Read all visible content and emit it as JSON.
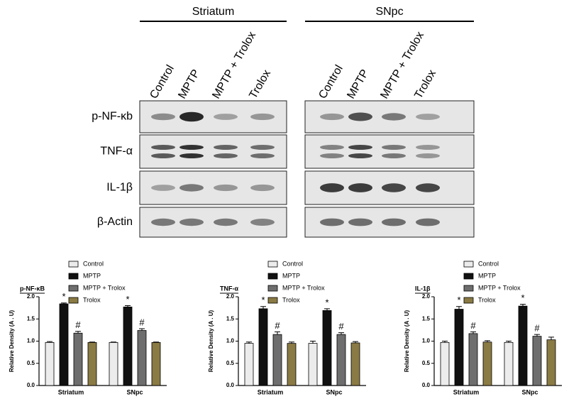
{
  "blot": {
    "regions": [
      "Striatum",
      "SNpc"
    ],
    "lanes": [
      "Control",
      "MPTP",
      "MPTP + Trolox",
      "Trolox"
    ],
    "rows": [
      "p-NF-κb",
      "TNF-α",
      "IL-1β",
      "β-Actin"
    ]
  },
  "chart_data": [
    {
      "type": "bar",
      "title": "p-NF-κB",
      "y_label": "Relative Density (A . U)",
      "categories": [
        "Striatum",
        "SNpc"
      ],
      "ylim": [
        0,
        2
      ],
      "yticks": [
        {
          "value": 0,
          "label": "0.0"
        },
        0.5,
        {
          "value": 1,
          "label": "1.0"
        },
        1.5,
        {
          "value": 2,
          "label": "2.0"
        }
      ],
      "series": [
        {
          "name": "Control",
          "color": "#ececec",
          "values": [
            0.97,
            0.97
          ],
          "errors": [
            0.02,
            0.01
          ]
        },
        {
          "name": "MPTP",
          "color": "#111111",
          "values": [
            1.84,
            1.77
          ],
          "errors": [
            0.02,
            0.03
          ],
          "annotations": [
            "*",
            "*"
          ]
        },
        {
          "name": "MPTP + Trolox",
          "color": "#6e6e6e",
          "values": [
            1.18,
            1.24
          ],
          "errors": [
            0.04,
            0.04
          ],
          "annotations": [
            "#",
            "#"
          ]
        },
        {
          "name": "Trolox",
          "color": "#8a7a44",
          "values": [
            0.97,
            0.97
          ],
          "errors": [
            0.01,
            0.01
          ]
        }
      ]
    },
    {
      "type": "bar",
      "title": "TNF-α",
      "y_label": "Relative Density (A . U)",
      "categories": [
        "Striatum",
        "SNpc"
      ],
      "ylim": [
        0,
        2
      ],
      "yticks": [
        {
          "value": 0,
          "label": "0.0"
        },
        0.5,
        {
          "value": 1,
          "label": "1.0"
        },
        1.5,
        {
          "value": 2,
          "label": "2.0"
        }
      ],
      "series": [
        {
          "name": "Control",
          "color": "#ececec",
          "values": [
            0.95,
            0.95
          ],
          "errors": [
            0.03,
            0.05
          ]
        },
        {
          "name": "MPTP",
          "color": "#111111",
          "values": [
            1.73,
            1.69
          ],
          "errors": [
            0.05,
            0.04
          ],
          "annotations": [
            "*",
            "*"
          ]
        },
        {
          "name": "MPTP + Trolox",
          "color": "#6e6e6e",
          "values": [
            1.15,
            1.15
          ],
          "errors": [
            0.06,
            0.04
          ],
          "annotations": [
            "#",
            "#"
          ]
        },
        {
          "name": "Trolox",
          "color": "#8a7a44",
          "values": [
            0.95,
            0.96
          ],
          "errors": [
            0.03,
            0.03
          ]
        }
      ]
    },
    {
      "type": "bar",
      "title": "IL-1β",
      "y_label": "Relative Density (A . U)",
      "categories": [
        "Striatum",
        "SNpc"
      ],
      "ylim": [
        0,
        2
      ],
      "yticks": [
        {
          "value": 0,
          "label": "0.0"
        },
        0.5,
        {
          "value": 1,
          "label": "1.0"
        },
        1.5,
        {
          "value": 2,
          "label": "2.0"
        }
      ],
      "series": [
        {
          "name": "Control",
          "color": "#ececec",
          "values": [
            0.97,
            0.97
          ],
          "errors": [
            0.03,
            0.03
          ]
        },
        {
          "name": "MPTP",
          "color": "#111111",
          "values": [
            1.72,
            1.79
          ],
          "errors": [
            0.06,
            0.04
          ],
          "annotations": [
            "*",
            "*"
          ]
        },
        {
          "name": "MPTP + Trolox",
          "color": "#6e6e6e",
          "values": [
            1.17,
            1.11
          ],
          "errors": [
            0.04,
            0.04
          ],
          "annotations": [
            "#",
            "#"
          ]
        },
        {
          "name": "Trolox",
          "color": "#8a7a44",
          "values": [
            0.98,
            1.03
          ],
          "errors": [
            0.03,
            0.06
          ]
        }
      ]
    }
  ]
}
